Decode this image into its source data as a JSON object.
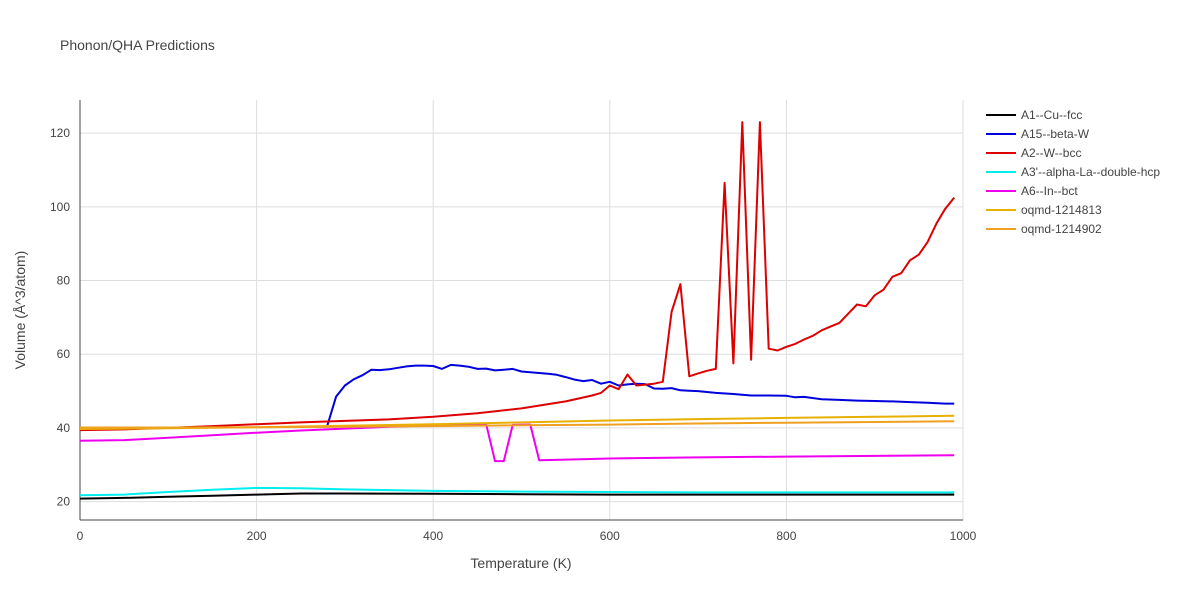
{
  "chart_data": {
    "type": "line",
    "title": "Phonon/QHA Predictions",
    "xlabel": "Temperature (K)",
    "ylabel": "Volume (Å^3/atom)",
    "xlim": [
      0,
      1000
    ],
    "ylim": [
      15,
      129
    ],
    "xticks": [
      0,
      200,
      400,
      600,
      800,
      1000
    ],
    "yticks": [
      20,
      40,
      60,
      80,
      100,
      120
    ],
    "grid": true,
    "legend_position": "right",
    "series": [
      {
        "name": "A1--Cu--fcc",
        "color": "#000000",
        "x": [
          0,
          50,
          100,
          150,
          200,
          250,
          300,
          400,
          500,
          600,
          700,
          800,
          900,
          990
        ],
        "y": [
          20.8,
          21.0,
          21.3,
          21.6,
          21.9,
          22.2,
          22.2,
          22.1,
          22.0,
          21.9,
          21.9,
          21.9,
          21.9,
          21.9
        ]
      },
      {
        "name": "A15--beta-W",
        "color": "#0000dd",
        "x": [
          280,
          290,
          300,
          310,
          320,
          330,
          340,
          350,
          360,
          370,
          380,
          390,
          400,
          410,
          420,
          430,
          440,
          450,
          460,
          470,
          480,
          490,
          500,
          510,
          520,
          530,
          540,
          550,
          560,
          570,
          580,
          590,
          600,
          610,
          620,
          630,
          640,
          650,
          660,
          670,
          680,
          690,
          700,
          720,
          740,
          760,
          780,
          800,
          810,
          820,
          840,
          860,
          880,
          900,
          920,
          940,
          960,
          980,
          990
        ],
        "y": [
          40.5,
          48.5,
          51.5,
          53.2,
          54.3,
          55.8,
          55.7,
          55.9,
          56.3,
          56.7,
          56.9,
          56.9,
          56.8,
          56.0,
          57.1,
          56.9,
          56.6,
          56.0,
          56.1,
          55.6,
          55.8,
          56.0,
          55.3,
          55.1,
          54.9,
          54.7,
          54.4,
          53.8,
          53.1,
          52.7,
          53.0,
          52.0,
          52.5,
          51.5,
          51.8,
          52.0,
          51.9,
          50.7,
          50.6,
          50.8,
          50.2,
          50.1,
          50.0,
          49.5,
          49.2,
          48.8,
          48.8,
          48.7,
          48.3,
          48.4,
          47.8,
          47.6,
          47.4,
          47.3,
          47.2,
          47.0,
          46.8,
          46.6,
          46.6
        ]
      },
      {
        "name": "A2--W--bcc",
        "color": "#dd0000",
        "x": [
          0,
          50,
          100,
          150,
          200,
          250,
          300,
          350,
          400,
          450,
          500,
          550,
          580,
          590,
          600,
          610,
          620,
          630,
          650,
          660,
          670,
          680,
          690,
          700,
          710,
          720,
          730,
          740,
          750,
          760,
          770,
          780,
          790,
          800,
          810,
          820,
          830,
          840,
          850,
          860,
          870,
          880,
          890,
          900,
          910,
          920,
          930,
          940,
          950,
          960,
          970,
          980,
          990
        ],
        "y": [
          39.4,
          39.6,
          40.0,
          40.5,
          41.0,
          41.5,
          41.9,
          42.3,
          43.0,
          44.0,
          45.3,
          47.2,
          48.8,
          49.5,
          51.5,
          50.5,
          54.5,
          51.5,
          52.0,
          52.5,
          71.5,
          79.0,
          54.0,
          54.8,
          55.5,
          56.0,
          106.5,
          57.5,
          123.0,
          58.5,
          123.0,
          61.5,
          61.0,
          62.0,
          62.8,
          64.0,
          65.0,
          66.5,
          67.5,
          68.5,
          71.0,
          73.5,
          73.0,
          76.0,
          77.5,
          81.0,
          82.0,
          85.5,
          87.0,
          90.5,
          95.5,
          99.5,
          102.5
        ]
      },
      {
        "name": "A3'--alpha-La--double-hcp",
        "color": "#00eeee",
        "x": [
          0,
          50,
          100,
          150,
          200,
          250,
          300,
          400,
          500,
          600,
          700,
          800,
          900,
          990
        ],
        "y": [
          21.7,
          21.9,
          22.6,
          23.2,
          23.7,
          23.6,
          23.3,
          22.9,
          22.7,
          22.6,
          22.5,
          22.5,
          22.5,
          22.5
        ]
      },
      {
        "name": "A6--In--bct",
        "color": "#ee00ee",
        "x": [
          0,
          50,
          100,
          150,
          200,
          250,
          300,
          350,
          400,
          450,
          460,
          470,
          480,
          490,
          510,
          520,
          550,
          600,
          700,
          800,
          900,
          990
        ],
        "y": [
          36.5,
          36.7,
          37.3,
          38.0,
          38.7,
          39.3,
          39.8,
          40.3,
          40.7,
          40.9,
          41.0,
          31.0,
          31.0,
          40.8,
          40.9,
          31.2,
          31.4,
          31.7,
          32.0,
          32.2,
          32.4,
          32.6
        ]
      },
      {
        "name": "oqmd-1214813",
        "color": "#e8b000",
        "x": [
          0,
          100,
          200,
          300,
          400,
          500,
          600,
          700,
          800,
          900,
          990
        ],
        "y": [
          39.7,
          39.9,
          40.2,
          40.6,
          41.0,
          41.5,
          42.0,
          42.4,
          42.7,
          43.0,
          43.3
        ]
      },
      {
        "name": "oqmd-1214902",
        "color": "#f0a020",
        "x": [
          0,
          100,
          200,
          300,
          400,
          500,
          600,
          700,
          800,
          900,
          990
        ],
        "y": [
          40.1,
          40.1,
          40.2,
          40.3,
          40.5,
          40.7,
          40.9,
          41.2,
          41.4,
          41.6,
          41.8
        ]
      }
    ]
  }
}
